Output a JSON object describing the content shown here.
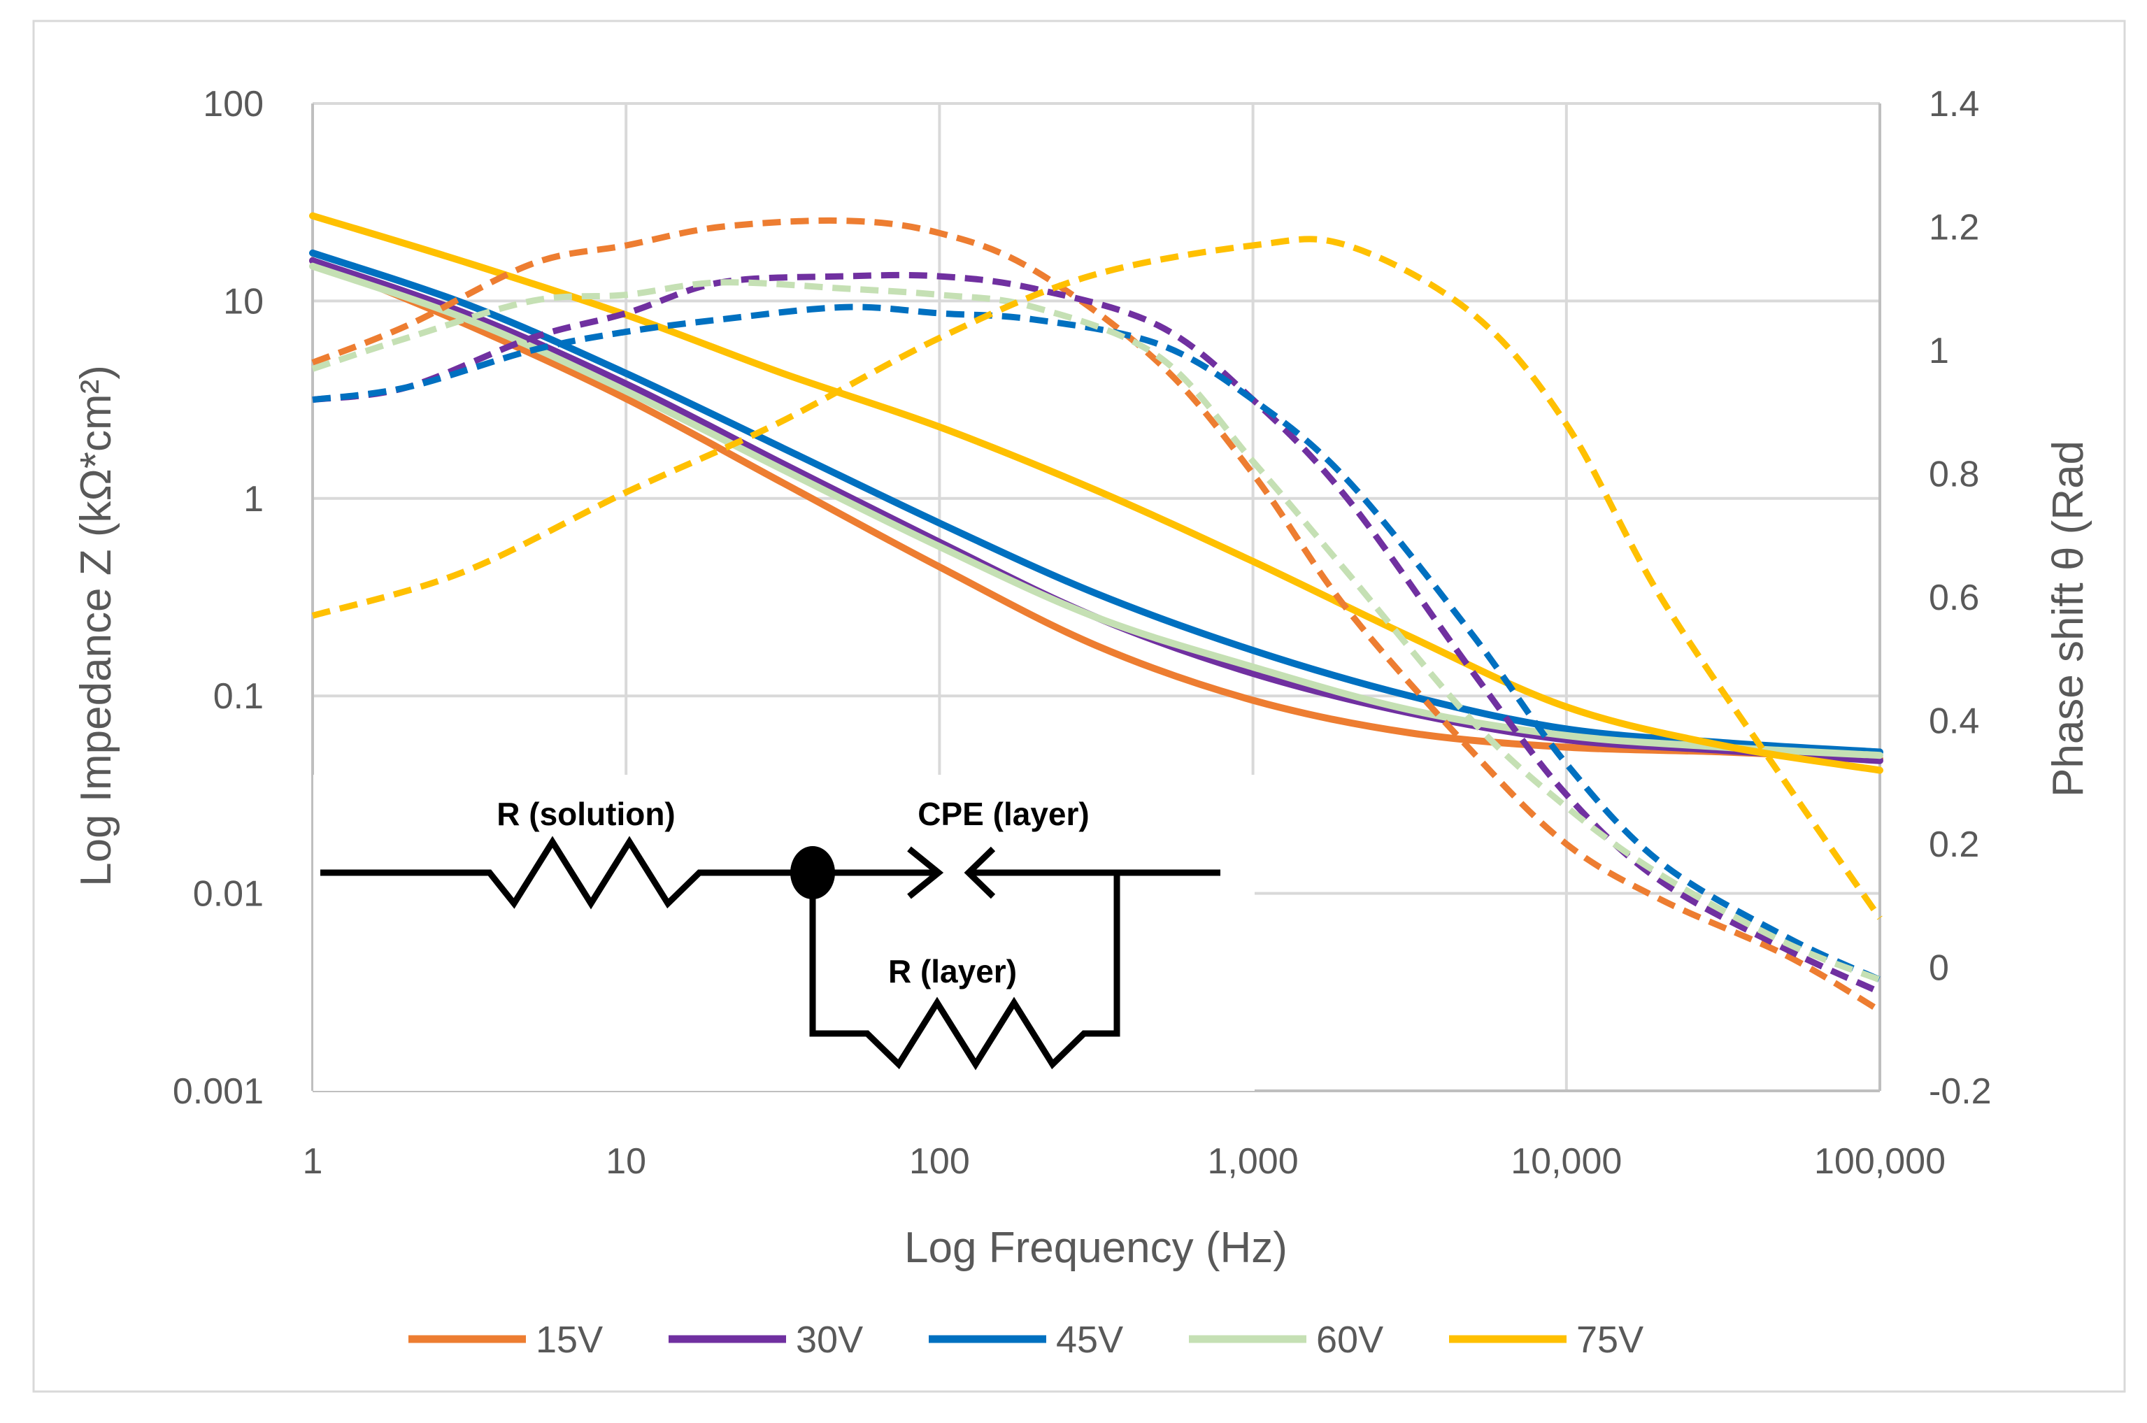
{
  "chart_data": {
    "type": "line",
    "xlabel": "Log Frequency (Hz)",
    "ylabel_left": "Log Impedance  Z (kΩ*cm²)",
    "ylabel_right": "Phase shift θ (Rad",
    "x_scale": "log",
    "xlim": [
      1,
      100000
    ],
    "x_ticks": [
      "1",
      "10",
      "100",
      "1,000",
      "10,000",
      "100,000"
    ],
    "y_left_scale": "log",
    "y_left_lim": [
      0.001,
      100
    ],
    "y_left_ticks": [
      "0.001",
      "0.01",
      "0.1",
      "1",
      "10",
      "100"
    ],
    "y_right_lim": [
      -0.2,
      1.4
    ],
    "y_right_ticks": [
      "-0.2",
      "0",
      "0.2",
      "0.4",
      "0.6",
      "0.8",
      "1",
      "1.2",
      "1.4"
    ],
    "grid": true,
    "legend_position": "bottom",
    "legend": [
      "15V",
      "30V",
      "45V",
      "60V",
      "75V"
    ],
    "series": [
      {
        "name": "15V",
        "color": "#ED7D31",
        "impedance": [
          [
            1,
            16
          ],
          [
            3.16,
            7.5
          ],
          [
            10,
            3.2
          ],
          [
            31.6,
            1.2
          ],
          [
            100,
            0.45
          ],
          [
            316,
            0.18
          ],
          [
            1000,
            0.095
          ],
          [
            3160,
            0.065
          ],
          [
            10000,
            0.055
          ],
          [
            31600,
            0.052
          ],
          [
            100000,
            0.048
          ]
        ],
        "phase": [
          [
            1,
            0.98
          ],
          [
            2,
            1.04
          ],
          [
            5,
            1.14
          ],
          [
            10,
            1.17
          ],
          [
            20,
            1.2
          ],
          [
            50,
            1.21
          ],
          [
            100,
            1.19
          ],
          [
            200,
            1.13
          ],
          [
            500,
            0.98
          ],
          [
            1000,
            0.8
          ],
          [
            2000,
            0.58
          ],
          [
            5000,
            0.35
          ],
          [
            10000,
            0.2
          ],
          [
            20000,
            0.11
          ],
          [
            50000,
            0.02
          ],
          [
            100000,
            -0.07
          ]
        ]
      },
      {
        "name": "30V",
        "color": "#7030A0",
        "impedance": [
          [
            1,
            16
          ],
          [
            3.16,
            8.5
          ],
          [
            10,
            3.8
          ],
          [
            31.6,
            1.5
          ],
          [
            100,
            0.6
          ],
          [
            316,
            0.25
          ],
          [
            1000,
            0.13
          ],
          [
            3160,
            0.082
          ],
          [
            10000,
            0.06
          ],
          [
            31600,
            0.053
          ],
          [
            100000,
            0.047
          ]
        ],
        "phase": [
          [
            1,
            0.92
          ],
          [
            2,
            0.94
          ],
          [
            5,
            1.02
          ],
          [
            10,
            1.06
          ],
          [
            20,
            1.11
          ],
          [
            50,
            1.12
          ],
          [
            100,
            1.12
          ],
          [
            200,
            1.1
          ],
          [
            500,
            1.04
          ],
          [
            1000,
            0.92
          ],
          [
            2000,
            0.76
          ],
          [
            5000,
            0.48
          ],
          [
            10000,
            0.28
          ],
          [
            20000,
            0.14
          ],
          [
            50000,
            0.03
          ],
          [
            100000,
            -0.04
          ]
        ]
      },
      {
        "name": "45V",
        "color": "#0070C0",
        "impedance": [
          [
            1,
            17.5
          ],
          [
            3.16,
            9.5
          ],
          [
            10,
            4.3
          ],
          [
            31.6,
            1.8
          ],
          [
            100,
            0.75
          ],
          [
            316,
            0.33
          ],
          [
            1000,
            0.17
          ],
          [
            3160,
            0.1
          ],
          [
            10000,
            0.068
          ],
          [
            31600,
            0.058
          ],
          [
            100000,
            0.052
          ]
        ],
        "phase": [
          [
            1,
            0.92
          ],
          [
            2,
            0.94
          ],
          [
            5,
            1.0
          ],
          [
            10,
            1.03
          ],
          [
            20,
            1.05
          ],
          [
            50,
            1.07
          ],
          [
            100,
            1.06
          ],
          [
            200,
            1.05
          ],
          [
            500,
            1.01
          ],
          [
            1000,
            0.92
          ],
          [
            2000,
            0.79
          ],
          [
            5000,
            0.54
          ],
          [
            10000,
            0.33
          ],
          [
            20000,
            0.17
          ],
          [
            50000,
            0.05
          ],
          [
            100000,
            -0.02
          ]
        ]
      },
      {
        "name": "60V",
        "color": "#C5E0B4",
        "impedance": [
          [
            1,
            15
          ],
          [
            3.16,
            8
          ],
          [
            10,
            3.5
          ],
          [
            31.6,
            1.4
          ],
          [
            100,
            0.57
          ],
          [
            316,
            0.25
          ],
          [
            1000,
            0.14
          ],
          [
            3160,
            0.085
          ],
          [
            10000,
            0.063
          ],
          [
            31600,
            0.055
          ],
          [
            100000,
            0.05
          ]
        ],
        "phase": [
          [
            1,
            0.97
          ],
          [
            2,
            1.02
          ],
          [
            5,
            1.08
          ],
          [
            10,
            1.09
          ],
          [
            20,
            1.11
          ],
          [
            50,
            1.1
          ],
          [
            100,
            1.09
          ],
          [
            200,
            1.07
          ],
          [
            500,
            0.99
          ],
          [
            1000,
            0.82
          ],
          [
            2000,
            0.64
          ],
          [
            5000,
            0.4
          ],
          [
            10000,
            0.26
          ],
          [
            20000,
            0.15
          ],
          [
            50000,
            0.04
          ],
          [
            100000,
            -0.02
          ]
        ]
      },
      {
        "name": "75V",
        "color": "#FFC000",
        "impedance": [
          [
            1,
            27
          ],
          [
            3.16,
            15.5
          ],
          [
            10,
            8.5
          ],
          [
            31.6,
            4.3
          ],
          [
            100,
            2.3
          ],
          [
            316,
            1.1
          ],
          [
            1000,
            0.48
          ],
          [
            3160,
            0.2
          ],
          [
            10000,
            0.088
          ],
          [
            31600,
            0.056
          ],
          [
            100000,
            0.042
          ]
        ],
        "phase": [
          [
            1,
            0.57
          ],
          [
            3,
            0.64
          ],
          [
            10,
            0.77
          ],
          [
            30,
            0.88
          ],
          [
            100,
            1.02
          ],
          [
            300,
            1.12
          ],
          [
            1000,
            1.17
          ],
          [
            2000,
            1.17
          ],
          [
            5000,
            1.06
          ],
          [
            10000,
            0.88
          ],
          [
            20000,
            0.6
          ],
          [
            50000,
            0.3
          ],
          [
            100000,
            0.08
          ]
        ]
      }
    ]
  },
  "inset": {
    "labels": {
      "r_solution": "R (solution)",
      "cpe_layer": "CPE (layer)",
      "r_layer": "R (layer)"
    }
  }
}
